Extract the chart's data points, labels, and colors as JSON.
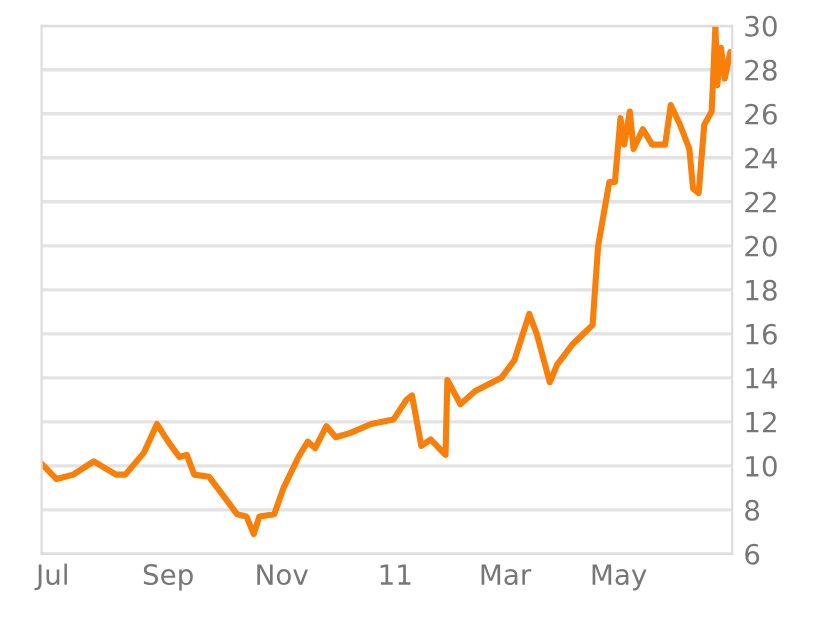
{
  "chart_data": {
    "type": "line",
    "x": [
      "2010-06-25",
      "2010-07-03",
      "2010-07-12",
      "2010-07-23",
      "2010-08-04",
      "2010-08-09",
      "2010-08-19",
      "2010-08-26",
      "2010-09-01",
      "2010-09-07",
      "2010-09-11",
      "2010-09-15",
      "2010-09-23",
      "2010-10-01",
      "2010-10-08",
      "2010-10-13",
      "2010-10-17",
      "2010-10-20",
      "2010-10-28",
      "2010-11-02",
      "2010-11-10",
      "2010-11-15",
      "2010-11-19",
      "2010-11-25",
      "2010-11-30",
      "2010-12-08",
      "2010-12-19",
      "2010-12-31",
      "2011-01-07",
      "2011-01-10",
      "2011-01-15",
      "2011-01-20",
      "2011-01-28",
      "2011-01-29",
      "2011-02-05",
      "2011-02-13",
      "2011-02-27",
      "2011-03-06",
      "2011-03-14",
      "2011-03-18",
      "2011-03-25",
      "2011-03-29",
      "2011-04-06",
      "2011-04-17",
      "2011-04-20",
      "2011-04-26",
      "2011-04-29",
      "2011-05-02",
      "2011-05-04",
      "2011-05-07",
      "2011-05-09",
      "2011-05-14",
      "2011-05-19",
      "2011-05-26",
      "2011-05-29",
      "2011-06-03",
      "2011-06-08",
      "2011-06-10",
      "2011-06-13",
      "2011-06-16",
      "2011-06-20",
      "2011-06-22",
      "2011-06-23",
      "2011-06-25",
      "2011-06-27",
      "2011-06-30"
    ],
    "series": [
      {
        "color": "#f77f0a",
        "values": [
          10.1,
          9.4,
          9.6,
          10.2,
          9.6,
          9.6,
          10.6,
          11.9,
          11.1,
          10.4,
          10.5,
          9.6,
          9.5,
          8.6,
          7.8,
          7.7,
          6.9,
          7.7,
          7.8,
          9.0,
          10.4,
          11.1,
          10.8,
          11.8,
          11.3,
          11.5,
          11.9,
          12.1,
          13.0,
          13.2,
          10.9,
          11.2,
          10.5,
          13.9,
          12.8,
          13.4,
          14.0,
          14.8,
          16.9,
          16.0,
          13.8,
          14.6,
          15.5,
          16.4,
          20.0,
          22.9,
          22.9,
          25.8,
          24.6,
          26.1,
          24.4,
          25.3,
          24.6,
          24.6,
          26.4,
          25.5,
          24.4,
          22.6,
          22.4,
          25.5,
          26.1,
          30.0,
          27.3,
          29.0,
          27.6,
          28.8
        ]
      }
    ],
    "xlim": [
      "2010-06-25",
      "2011-07-01"
    ],
    "xticks": [
      {
        "value": "2010-07-01",
        "label": "Jul"
      },
      {
        "value": "2010-09-01",
        "label": "Sep"
      },
      {
        "value": "2010-11-01",
        "label": "Nov"
      },
      {
        "value": "2011-01-01",
        "label": "11"
      },
      {
        "value": "2011-03-01",
        "label": "Mar"
      },
      {
        "value": "2011-05-01",
        "label": "May"
      }
    ],
    "ylim": [
      6,
      30
    ],
    "yticks": [
      6,
      8,
      10,
      12,
      14,
      16,
      18,
      20,
      22,
      24,
      26,
      28,
      30
    ],
    "grid": "y",
    "legend": false,
    "line_style": "solid",
    "marker": "none"
  }
}
